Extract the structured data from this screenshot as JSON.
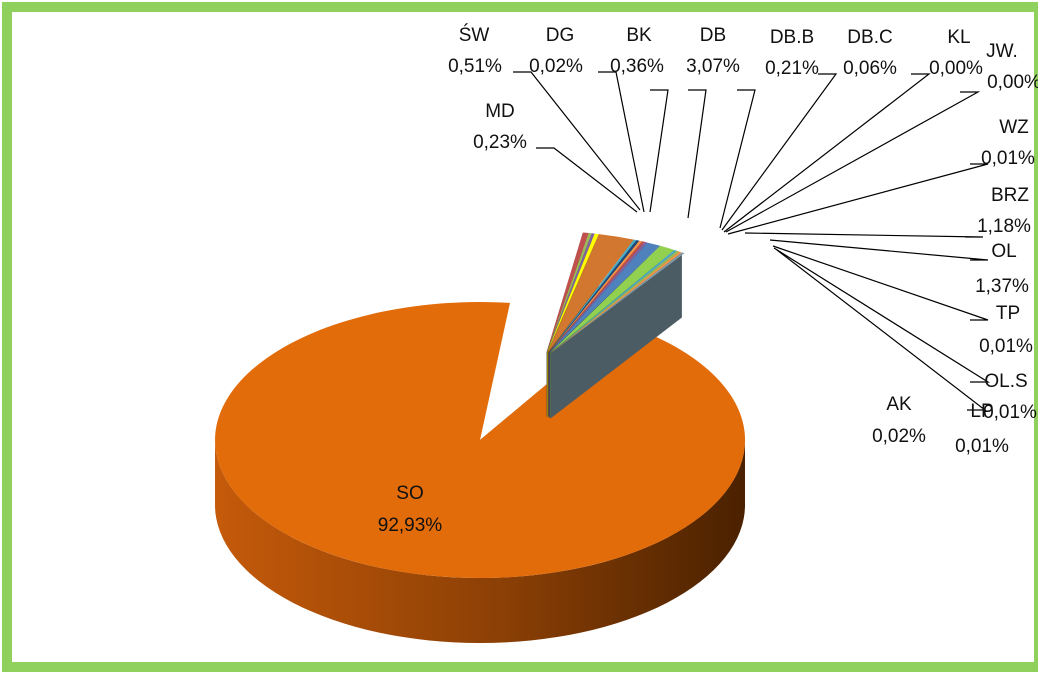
{
  "chart_data": {
    "type": "pie",
    "title": "",
    "slices": [
      {
        "label": "SO",
        "percent_text": "92,93%",
        "value": 92.93,
        "color": "#e36c0a"
      },
      {
        "label": "ŚW",
        "percent_text": "0,51%",
        "value": 0.51,
        "color": "#c0504d"
      },
      {
        "label": "MD",
        "percent_text": "0,23%",
        "value": 0.23,
        "color": "#9bbb59"
      },
      {
        "label": "DG",
        "percent_text": "0,02%",
        "value": 0.02,
        "color": "#8064a2"
      },
      {
        "label": "BK",
        "percent_text": "0,36%",
        "value": 0.36,
        "color": "#ffff00"
      },
      {
        "label": "DB",
        "percent_text": "3,07%",
        "value": 3.07,
        "color": "#d2772f"
      },
      {
        "label": "DB.B",
        "percent_text": "0,21%",
        "value": 0.21,
        "color": "#4bacc6"
      },
      {
        "label": "DB.C",
        "percent_text": "0,06%",
        "value": 0.06,
        "color": "#1f497d"
      },
      {
        "label": "KL",
        "percent_text": "0,00%",
        "value": 0.0,
        "color": "#f79646"
      },
      {
        "label": "JW.",
        "percent_text": "0,00%",
        "value": 0.0,
        "color": "#c0504d"
      },
      {
        "label": "WZ",
        "percent_text": "0,01%",
        "value": 0.01,
        "color": "#8064a2"
      },
      {
        "label": "BRZ",
        "percent_text": "1,18%",
        "value": 1.18,
        "color": "#4f81bd"
      },
      {
        "label": "OL",
        "percent_text": "1,37%",
        "value": 1.37,
        "color": "#92d050"
      },
      {
        "label": "TP",
        "percent_text": "0,01%",
        "value": 0.01,
        "color": "#4bacc6"
      },
      {
        "label": "OL.S",
        "percent_text": "0,01%",
        "value": 0.01,
        "color": "#9bbb59"
      },
      {
        "label": "LP",
        "percent_text": "0,01%",
        "value": 0.01,
        "color": "#f79646"
      },
      {
        "label": "AK",
        "percent_text": "0,02%",
        "value": 0.02,
        "color": "#7f9aa7"
      }
    ],
    "frame_color": "#8fd15c"
  }
}
